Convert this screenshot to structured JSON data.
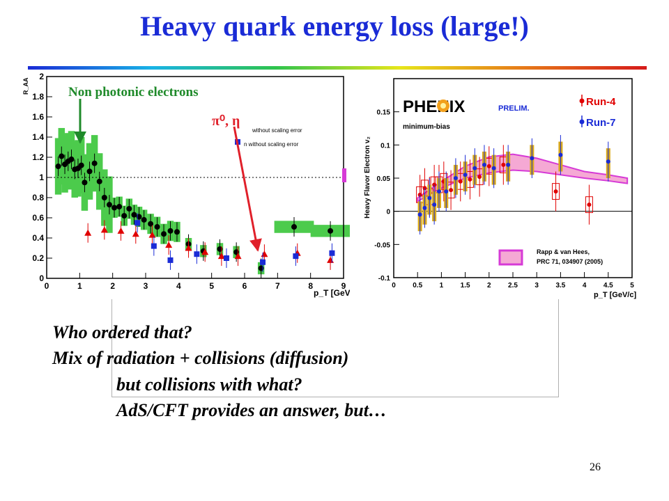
{
  "slide": {
    "title": "Heavy quark energy loss (large!)",
    "page_number": "26",
    "lines": [
      "Who ordered that?",
      "Mix of radiation + collisions (diffusion)",
      "but collisions with what?",
      "AdS/CFT provides an answer, but…"
    ]
  },
  "colors": {
    "title": "#1a2bd6",
    "annotation_green": "#1f8a2a",
    "arrow_red": "#e0202a"
  },
  "chart_data": [
    {
      "type": "scatter",
      "ylabel": "R_AA",
      "xlabel": "p_T [GeV/c]",
      "xlim": [
        0,
        9
      ],
      "ylim": [
        0,
        2
      ],
      "xticks": [
        "0",
        "1",
        "2",
        "3",
        "4",
        "5",
        "6",
        "7",
        "8",
        "9"
      ],
      "yticks": [
        "0",
        "0.2",
        "0.4",
        "0.6",
        "0.8",
        "1",
        "1.2",
        "1.4",
        "1.6",
        "1.8",
        "2"
      ],
      "annotations": {
        "electrons": "Non photonic electrons",
        "pions": "π⁰, η"
      },
      "legend_fragments": [
        "without scaling error",
        "n without scaling error"
      ],
      "series": [
        {
          "name": "Non photonic electrons",
          "marker": "circle",
          "color": "#000000",
          "x": [
            0.35,
            0.45,
            0.55,
            0.65,
            0.75,
            0.85,
            0.95,
            1.05,
            1.15,
            1.3,
            1.45,
            1.6,
            1.75,
            1.9,
            2.05,
            2.2,
            2.35,
            2.5,
            2.65,
            2.8,
            2.95,
            3.15,
            3.35,
            3.55,
            3.75,
            3.95,
            4.3,
            4.75,
            5.25,
            5.75,
            6.5,
            7.5,
            8.6
          ],
          "y": [
            1.11,
            1.21,
            1.13,
            1.16,
            1.18,
            1.08,
            1.09,
            1.12,
            0.95,
            1.06,
            1.14,
            0.96,
            0.8,
            0.73,
            0.7,
            0.71,
            0.62,
            0.69,
            0.63,
            0.61,
            0.58,
            0.54,
            0.51,
            0.44,
            0.47,
            0.46,
            0.34,
            0.27,
            0.29,
            0.26,
            0.1,
            0.51,
            0.47
          ]
        },
        {
          "name": "π⁰",
          "marker": "triangle",
          "color": "#e00000",
          "x": [
            1.25,
            1.75,
            2.25,
            2.7,
            3.2,
            3.7,
            4.3,
            4.8,
            5.3,
            5.8,
            6.6,
            7.6,
            8.6
          ],
          "y": [
            0.45,
            0.48,
            0.47,
            0.44,
            0.43,
            0.33,
            0.3,
            0.26,
            0.22,
            0.22,
            0.24,
            0.25,
            0.18
          ]
        },
        {
          "name": "η",
          "marker": "square",
          "color": "#1a2bd6",
          "x": [
            2.75,
            3.25,
            3.75,
            4.55,
            5.45,
            6.55,
            7.55,
            8.65
          ],
          "y": [
            0.55,
            0.32,
            0.18,
            0.24,
            0.2,
            0.16,
            0.22,
            0.25
          ]
        }
      ]
    },
    {
      "type": "scatter",
      "ylabel": "Heavy Flavor Electron v₂",
      "xlabel": "p_T [GeV/c]",
      "xlim": [
        0,
        5
      ],
      "ylim": [
        -0.1,
        0.2
      ],
      "xticks": [
        "0",
        "0.5",
        "1",
        "1.5",
        "2",
        "2.5",
        "3",
        "3.5",
        "4",
        "4.5",
        "5"
      ],
      "yticks": [
        "-0.1",
        "-0.05",
        "0",
        "0.05",
        "0.1",
        "0.15"
      ],
      "logo": "PHENIX",
      "labels": {
        "prelim": "PRELIM.",
        "centrality": "minimum-bias",
        "model": "Rapp & van Hees,",
        "model_ref": "PRC 71, 034907 (2005)"
      },
      "series": [
        {
          "name": "Run-4",
          "color": "#e00000",
          "x": [
            0.55,
            0.65,
            0.75,
            0.85,
            0.95,
            1.05,
            1.2,
            1.4,
            1.6,
            1.8,
            2.0,
            2.3,
            3.4,
            4.1
          ],
          "y": [
            0.025,
            0.035,
            0.022,
            0.04,
            0.04,
            0.045,
            0.032,
            0.045,
            0.048,
            0.052,
            0.068,
            0.07,
            0.03,
            0.01
          ]
        },
        {
          "name": "Run-7",
          "color": "#1a2bd6",
          "x": [
            0.55,
            0.65,
            0.75,
            0.85,
            0.95,
            1.1,
            1.3,
            1.5,
            1.7,
            1.9,
            2.1,
            2.4,
            2.9,
            3.5,
            4.5
          ],
          "y": [
            -0.005,
            0.005,
            0.02,
            0.01,
            0.03,
            0.03,
            0.05,
            0.055,
            0.065,
            0.07,
            0.065,
            0.07,
            0.08,
            0.085,
            0.075
          ]
        }
      ],
      "model_band": {
        "x": [
          0.5,
          1.0,
          1.5,
          2.0,
          2.5,
          3.0,
          3.5,
          4.0,
          4.5,
          4.9
        ],
        "upper": [
          0.02,
          0.045,
          0.068,
          0.082,
          0.086,
          0.08,
          0.07,
          0.06,
          0.055,
          0.05
        ],
        "lower": [
          0.015,
          0.035,
          0.05,
          0.058,
          0.062,
          0.06,
          0.055,
          0.05,
          0.046,
          0.042
        ]
      }
    }
  ]
}
